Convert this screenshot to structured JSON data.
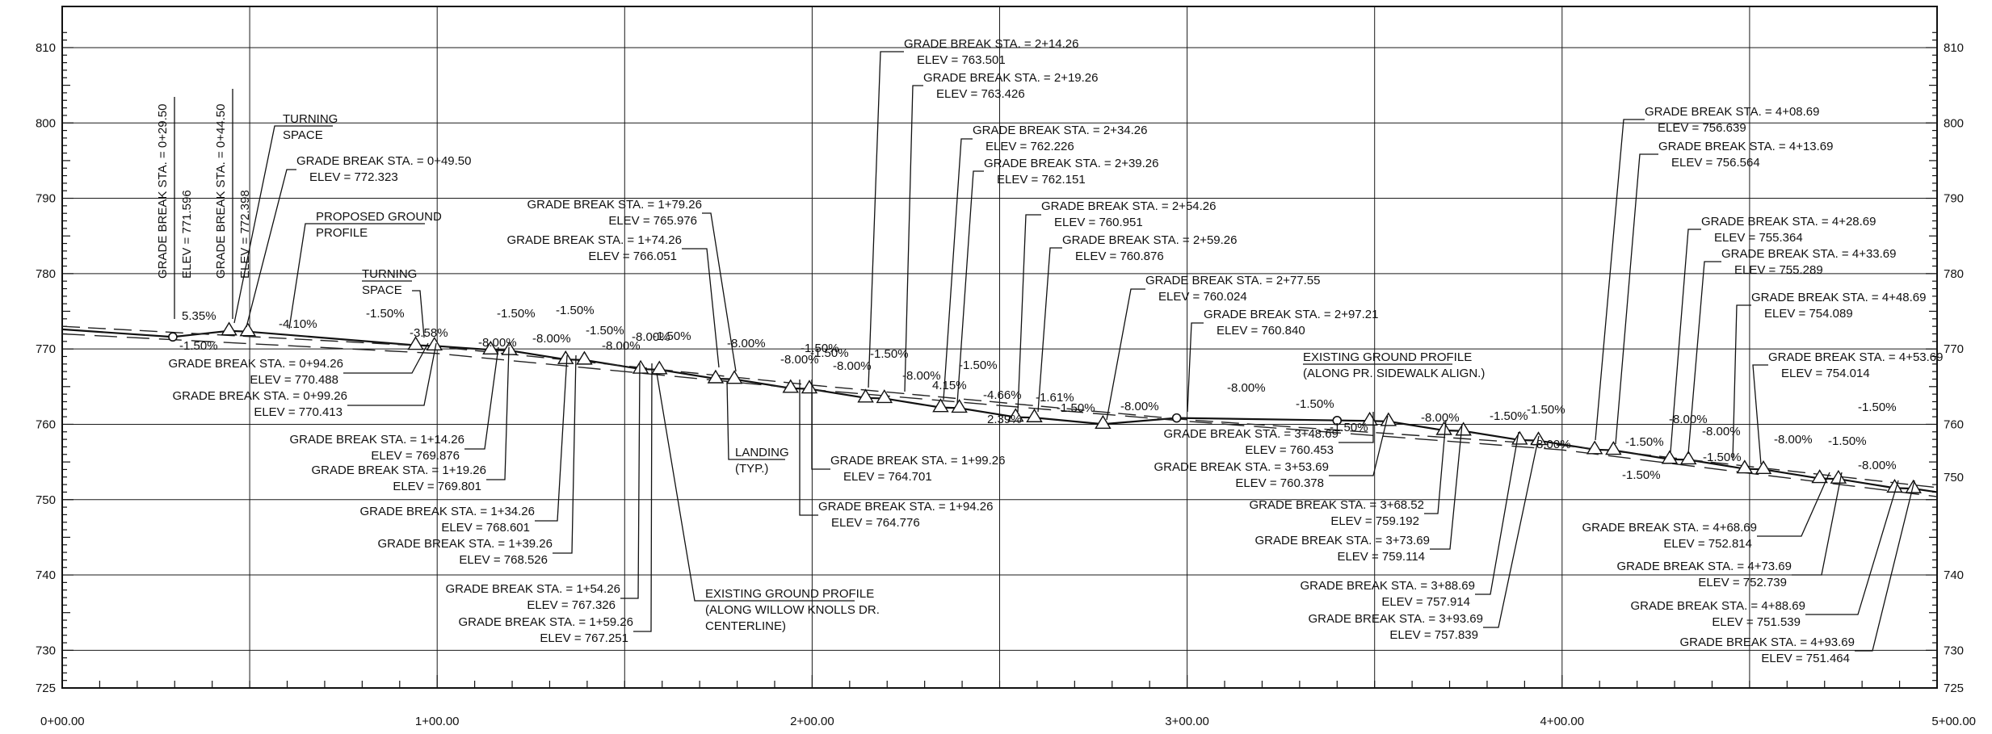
{
  "y_axis_labels": [
    "810",
    "800",
    "790",
    "780",
    "770",
    "760",
    "750",
    "740",
    "730",
    "725"
  ],
  "x_axis_labels": [
    "0+00.00",
    "1+00.00",
    "2+00.00",
    "3+00.00",
    "4+00.00",
    "5+00.00"
  ],
  "right_axis_labels": [
    "810",
    "800",
    "790",
    "780",
    "770",
    "760",
    "740",
    "730",
    "725"
  ],
  "right_axis_750": "750",
  "slope_labels": [
    "5.35%",
    "-1.50%",
    "-1.50%",
    "-4.10%",
    "-3.58%",
    "-1.50%",
    "-8.00%",
    "-1.50%",
    "-8.00%",
    "-1.50%",
    "-8.00%",
    "-8.00%",
    "-1.50%",
    "-1.50%",
    "-8.00%",
    "-1.50%",
    "-8.00%",
    "-1.50%",
    "-8.00%",
    "-1.50%",
    "-8.00%",
    "-4.66%",
    "4.15%",
    "-1.61%",
    "2.39%",
    "-1.50%",
    "-8.00%",
    "-1.50%",
    "-8.00%",
    "-1.50%",
    "-8.00%",
    "-1.50%",
    "-8.00%",
    "-1.50%",
    "-1.50%",
    "-8.00%",
    "-1.50%",
    "-8.00%",
    "-1.50%",
    "-8.00%",
    "-1.50%"
  ],
  "callouts": [
    {
      "sta": "GRADE BREAK STA. = 0+49.50",
      "elev": "ELEV =   772.323"
    },
    {
      "sta": "GRADE BREAK STA. = 0+94.26",
      "elev": "ELEV =   770.488"
    },
    {
      "sta": "GRADE BREAK STA. = 0+99.26",
      "elev": "ELEV =   770.413"
    },
    {
      "sta": "GRADE BREAK STA. = 1+14.26",
      "elev": "ELEV =   769.876"
    },
    {
      "sta": "GRADE BREAK STA. = 1+19.26",
      "elev": "ELEV =   769.801"
    },
    {
      "sta": "GRADE BREAK STA. = 1+34.26",
      "elev": "ELEV =   768.601"
    },
    {
      "sta": "GRADE BREAK STA. = 1+39.26",
      "elev": "ELEV =   768.526"
    },
    {
      "sta": "GRADE BREAK STA. = 1+54.26",
      "elev": "ELEV =   767.326"
    },
    {
      "sta": "GRADE BREAK STA. = 1+59.26",
      "elev": "ELEV =   767.251"
    },
    {
      "sta": "GRADE BREAK STA. = 1+79.26",
      "elev": "ELEV =   765.976"
    },
    {
      "sta": "GRADE BREAK STA. = 1+74.26",
      "elev": "ELEV =   766.051"
    },
    {
      "sta": "GRADE BREAK STA. = 1+99.26",
      "elev": "ELEV =   764.701"
    },
    {
      "sta": "GRADE BREAK STA. = 1+94.26",
      "elev": "ELEV =   764.776"
    },
    {
      "sta": "GRADE BREAK STA. = 2+14.26",
      "elev": "ELEV =   763.501"
    },
    {
      "sta": "GRADE BREAK STA. = 2+19.26",
      "elev": "ELEV =   763.426"
    },
    {
      "sta": "GRADE BREAK STA. = 2+34.26",
      "elev": "ELEV =   762.226"
    },
    {
      "sta": "GRADE BREAK STA. = 2+39.26",
      "elev": "ELEV =   762.151"
    },
    {
      "sta": "GRADE BREAK STA. = 2+54.26",
      "elev": "ELEV =   760.951"
    },
    {
      "sta": "GRADE BREAK STA. = 2+59.26",
      "elev": "ELEV =   760.876"
    },
    {
      "sta": "GRADE BREAK STA. = 2+77.55",
      "elev": "ELEV =   760.024"
    },
    {
      "sta": "GRADE BREAK STA. = 2+97.21",
      "elev": "ELEV =   760.840"
    },
    {
      "sta": "GRADE BREAK STA. = 3+48.69",
      "elev": "ELEV =   760.453"
    },
    {
      "sta": "GRADE BREAK STA. = 3+53.69",
      "elev": "ELEV =   760.378"
    },
    {
      "sta": "GRADE BREAK STA. = 3+68.52",
      "elev": "ELEV =   759.192"
    },
    {
      "sta": "GRADE BREAK STA. = 3+73.69",
      "elev": "ELEV =   759.114"
    },
    {
      "sta": "GRADE BREAK STA. = 3+88.69",
      "elev": "ELEV =   757.914"
    },
    {
      "sta": "GRADE BREAK STA. = 3+93.69",
      "elev": "ELEV =   757.839"
    },
    {
      "sta": "GRADE BREAK STA. = 4+08.69",
      "elev": "ELEV =   756.639"
    },
    {
      "sta": "GRADE BREAK STA. = 4+13.69",
      "elev": "ELEV =   756.564"
    },
    {
      "sta": "GRADE BREAK STA. = 4+28.69",
      "elev": "ELEV =   755.364"
    },
    {
      "sta": "GRADE BREAK STA. = 4+33.69",
      "elev": "ELEV =   755.289"
    },
    {
      "sta": "GRADE BREAK STA. = 4+48.69",
      "elev": "ELEV =   754.089"
    },
    {
      "sta": "GRADE BREAK STA. = 4+53.69",
      "elev": "ELEV =   754.014"
    },
    {
      "sta": "GRADE BREAK STA. = 4+68.69",
      "elev": "ELEV =   752.814"
    },
    {
      "sta": "GRADE BREAK STA. = 4+73.69",
      "elev": "ELEV =   752.739"
    },
    {
      "sta": "GRADE BREAK STA. = 4+88.69",
      "elev": "ELEV =   751.539"
    },
    {
      "sta": "GRADE BREAK STA. = 4+93.69",
      "elev": "ELEV =   751.464"
    }
  ],
  "vertical_callouts": [
    {
      "sta": "GRADE BREAK STA. = 0+29.50",
      "elev": "ELEV =   771.596"
    },
    {
      "sta": "GRADE BREAK STA. = 0+44.50",
      "elev": "ELEV =   772.398"
    }
  ],
  "notes": {
    "turning_space_1_a": "TURNING",
    "turning_space_1_b": "SPACE",
    "turning_space_2_a": "TURNING",
    "turning_space_2_b": "SPACE",
    "proposed_ground_a": "PROPOSED GROUND",
    "proposed_ground_b": "PROFILE",
    "landing_a": "LANDING",
    "landing_b": "(TYP.)",
    "existing_willow_a": "EXISTING GROUND PROFILE",
    "existing_willow_b": "(ALONG WILLOW KNOLLS DR.",
    "existing_willow_c": "CENTERLINE)",
    "existing_sidewalk_a": "EXISTING GROUND PROFILE",
    "existing_sidewalk_b": "(ALONG PR. SIDEWALK ALIGN.)"
  }
}
